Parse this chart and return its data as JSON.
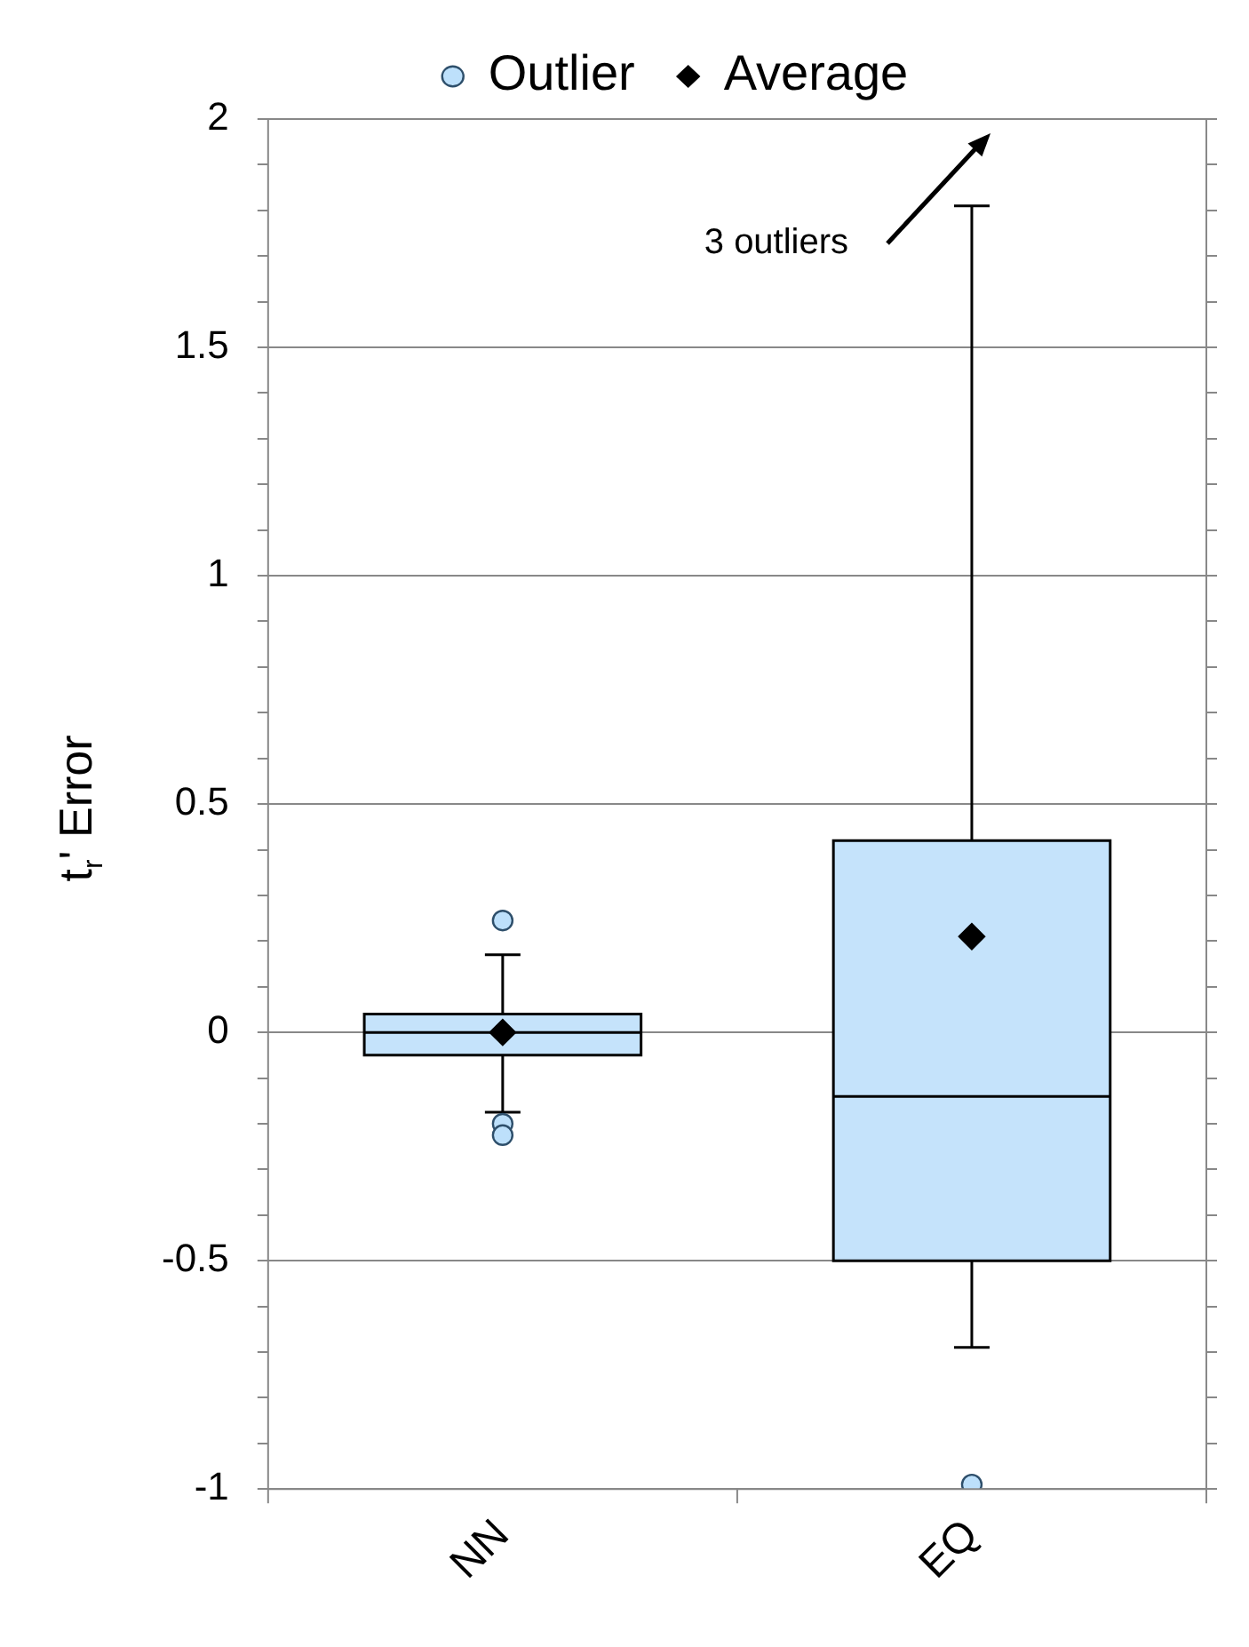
{
  "chart_data": {
    "type": "box",
    "ylabel": "t$_{r}$' Error",
    "categories": [
      "NN",
      "EQ"
    ],
    "series": [
      {
        "type": "box",
        "color": "#c5e3fb",
        "boxes": [
          {
            "low": -0.175,
            "q1": -0.05,
            "median": 0,
            "q3": 0.04,
            "high": 0.17
          },
          {
            "low": -0.69,
            "q1": -0.5,
            "median": -0.14,
            "q3": 0.42,
            "high": 1.81
          }
        ]
      },
      {
        "type": "scatter",
        "name": "Outlier",
        "color": "#bde0fb",
        "marker": "circle",
        "x": [
          "NN",
          "NN",
          "NN",
          "EQ"
        ],
        "values": [
          0.245,
          -0.2,
          -0.225,
          -0.99
        ]
      },
      {
        "type": "scatter",
        "name": "Average",
        "color": "#000000",
        "marker": "diamond",
        "x": [
          "NN",
          "EQ"
        ],
        "values": [
          0,
          0.21
        ]
      }
    ],
    "ylim": [
      -1,
      2
    ],
    "yticks": [
      -1,
      {
        "value": -0.9,
        "label": null
      },
      {
        "value": -0.8,
        "label": null
      },
      {
        "value": -0.7,
        "label": null
      },
      {
        "value": -0.6,
        "label": null
      },
      -0.5,
      {
        "value": -0.4,
        "label": null
      },
      {
        "value": -0.3,
        "label": null
      },
      {
        "value": -0.2,
        "label": null
      },
      {
        "value": -0.1,
        "label": null
      },
      0,
      {
        "value": 0.1,
        "label": null
      },
      {
        "value": 0.2,
        "label": null
      },
      {
        "value": 0.3,
        "label": null
      },
      {
        "value": 0.4,
        "label": null
      },
      0.5,
      {
        "value": 0.6,
        "label": null
      },
      {
        "value": 0.7,
        "label": null
      },
      {
        "value": 0.8,
        "label": null
      },
      {
        "value": 0.9,
        "label": null
      },
      1,
      {
        "value": 1.1,
        "label": null
      },
      {
        "value": 1.2,
        "label": null
      },
      {
        "value": 1.3,
        "label": null
      },
      {
        "value": 1.4,
        "label": null
      },
      1.5,
      {
        "value": 1.6,
        "label": null
      },
      {
        "value": 1.7,
        "label": null
      },
      {
        "value": 1.8,
        "label": null
      },
      {
        "value": 1.9,
        "label": null
      },
      2
    ],
    "grid": "y",
    "legend": "top",
    "annotations": [
      "3 outliers"
    ]
  }
}
